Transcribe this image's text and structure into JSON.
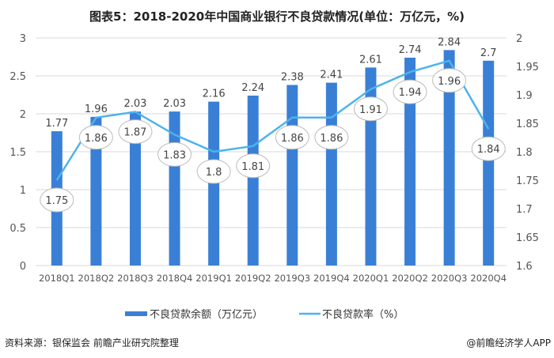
{
  "title": "图表5：2018-2020年中国商业银行不良贷款情况(单位：万亿元，%)",
  "source": "资料来源：银保监会 前瞻产业研究院整理",
  "brand": "@前瞻经济学人APP",
  "chart_data": {
    "type": "bar+line",
    "categories": [
      "2018Q1",
      "2018Q2",
      "2018Q3",
      "2018Q4",
      "2019Q1",
      "2019Q2",
      "2019Q3",
      "2019Q4",
      "2020Q1",
      "2020Q2",
      "2020Q3",
      "2020Q4"
    ],
    "series": [
      {
        "name": "不良贷款余额（万亿元）",
        "type": "bar",
        "axis": "left",
        "color": "#3a7fd6",
        "values": [
          1.77,
          1.96,
          2.03,
          2.03,
          2.16,
          2.24,
          2.38,
          2.41,
          2.61,
          2.74,
          2.84,
          2.7
        ]
      },
      {
        "name": "不良贷款率（%）",
        "type": "line",
        "axis": "right",
        "color": "#4db3ec",
        "values": [
          1.75,
          1.86,
          1.87,
          1.83,
          1.8,
          1.81,
          1.86,
          1.86,
          1.91,
          1.94,
          1.96,
          1.84
        ]
      }
    ],
    "y_left": {
      "range": [
        0,
        3
      ],
      "ticks": [
        "0",
        "0.5",
        "1",
        "1.5",
        "2",
        "2.5",
        "3"
      ]
    },
    "y_right": {
      "range": [
        1.6,
        2
      ],
      "ticks": [
        "1.6",
        "1.65",
        "1.7",
        "1.75",
        "1.8",
        "1.85",
        "1.9",
        "1.95",
        "2"
      ]
    },
    "grid": true,
    "legend": "bottom"
  }
}
